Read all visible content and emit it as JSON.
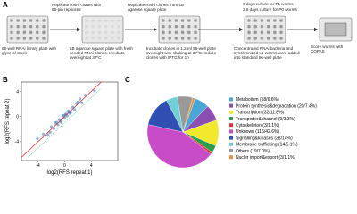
{
  "panel_labels": [
    "A",
    "B",
    "C"
  ],
  "workflow": {
    "steps": [
      "96-well RNAi library plate with glycerol stock",
      "LB agarose square plate with fresh seeded RNAi clones. Incubate overnight at 37ºC",
      "Incubate clones in 1.2 ml 96-well plate overnight with shaking at 37ºC. Induce clones with IPTG for 1h",
      "Concentrated RNAi bacteria and synchronized L1 worms were added into standard 96-well plate",
      "Score worms with COPAS"
    ],
    "transfers": [
      "Replicate RNAi clones with 96-pin replicator",
      "Replicate RNAi clones from LB agarose square plate",
      "6 days culture for F1 worms",
      "2.5 days culture for P0 worms"
    ]
  },
  "chart_data": [
    {
      "type": "scatter",
      "x_label": "log2(RFS repeat 1)",
      "y_label": "log2(RFS repeat 2)",
      "color": "#3f86bf",
      "x": [
        -3.2,
        -2.5,
        -2,
        -1.6,
        -1.2,
        -1,
        -0.8,
        -0.5,
        -0.3,
        0,
        0.2,
        0.4,
        0.6,
        0.9,
        1.2,
        1.5,
        2,
        2.6,
        3.1,
        -4.1,
        4.5,
        -1.4,
        0.8,
        1.8,
        -0.6,
        0.1,
        -2.2,
        2.3,
        -0.1,
        0.5
      ],
      "y": [
        -2.8,
        -2.9,
        -1.6,
        -1.9,
        -0.9,
        -1.3,
        -0.5,
        -0.7,
        0.1,
        -0.2,
        0.4,
        0.1,
        0.9,
        0.6,
        1.5,
        1.1,
        2.3,
        2.2,
        3.4,
        -3.5,
        4.1,
        -1,
        0.5,
        2.1,
        -0.9,
        0.3,
        -2.5,
        2.8,
        0.2,
        0.8
      ],
      "xlim": [
        -6.5,
        8
      ],
      "ylim": [
        -7,
        5.5
      ],
      "xticks": [
        -4,
        0,
        4
      ],
      "yticks": [
        -4,
        0,
        4
      ]
    },
    {
      "type": "pie",
      "categories": [
        "Metabolism (18/6.6%)",
        "Protein synthesis&degradation (20/7.4%)",
        "Transcription (32/11.8%)",
        "Transporter&channel (9/3.3%)",
        "Cytoskeleton (3/1.1%)",
        "Unknown (116/42.6%)",
        "Signalling&kinases (38/14%)",
        "Membrane trafficking (14/5.1%)",
        "Others (19/7.0%)",
        "Nucler import&export (3/1.1%)"
      ],
      "values": [
        6.6,
        7.4,
        11.8,
        3.3,
        1.1,
        42.6,
        14,
        5.1,
        7.0,
        1.1
      ],
      "colors": [
        "#49a7d8",
        "#8a4fb0",
        "#f2e82e",
        "#2a9d48",
        "#e03030",
        "#c84bc8",
        "#2f4fb3",
        "#6fd0d8",
        "#9a9a9a",
        "#e8913a"
      ]
    }
  ]
}
